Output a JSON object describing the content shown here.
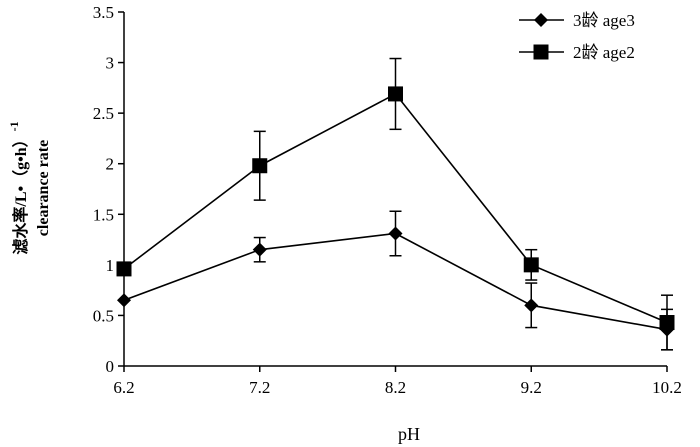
{
  "chart_data": {
    "type": "line",
    "title": "",
    "xlabel": "pH",
    "ylabel_line1": "滤水率/L•（g•h）",
    "ylabel_sup": "-1",
    "ylabel_line2": "clearance rate",
    "x": [
      6.2,
      7.2,
      8.2,
      9.2,
      10.2
    ],
    "x_tick_labels": [
      "6.2",
      "7.2",
      "8.2",
      "9.2",
      "10.2"
    ],
    "ylim": [
      0,
      3.5
    ],
    "y_ticks": [
      0,
      0.5,
      1,
      1.5,
      2,
      2.5,
      3,
      3.5
    ],
    "y_tick_labels": [
      "0",
      "0.5",
      "1",
      "1.5",
      "2",
      "2.5",
      "3",
      "3.5"
    ],
    "grid": false,
    "legend_position": "top-right",
    "series": [
      {
        "name": "3龄 age3",
        "marker": "diamond",
        "values": [
          0.65,
          1.15,
          1.31,
          0.6,
          0.36
        ],
        "errors": [
          0.0,
          0.12,
          0.22,
          0.22,
          0.2
        ]
      },
      {
        "name": "2龄 age2",
        "marker": "square",
        "values": [
          0.96,
          1.98,
          2.69,
          1.0,
          0.43
        ],
        "errors": [
          0.0,
          0.34,
          0.35,
          0.15,
          0.27
        ]
      }
    ]
  }
}
